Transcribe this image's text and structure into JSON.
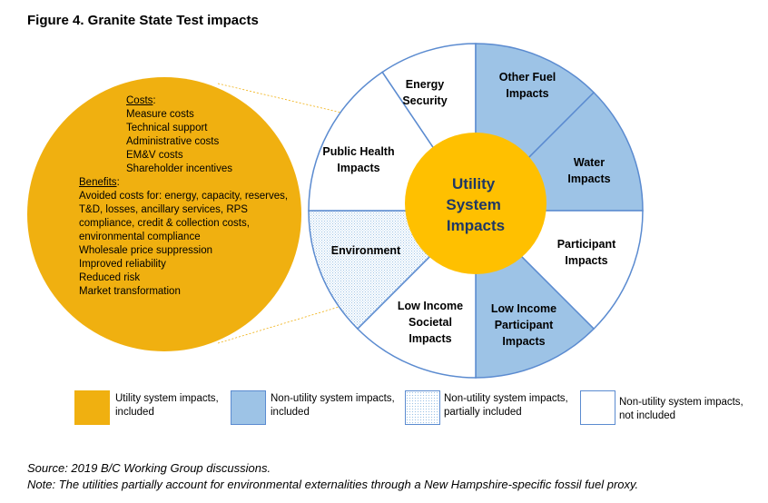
{
  "title": "Figure 4. Granite State Test impacts",
  "colors": {
    "utility": "#f0b010",
    "nonutility_included": "#9dc3e6",
    "border": "#5b8bd0",
    "center": "#ffc000"
  },
  "left_circle": {
    "costs_header": "Costs",
    "costs": [
      "Measure costs",
      "Technical support",
      "Administrative costs",
      "EM&V costs",
      "Shareholder incentives"
    ],
    "benefits_header": "Benefits",
    "benefits": [
      "Avoided costs for: energy, capacity, reserves,",
      "T&D, losses, ancillary services, RPS",
      "compliance, credit & collection costs,",
      "environmental compliance",
      "Wholesale price suppression",
      "Improved reliability",
      "Reduced risk",
      "Market transformation"
    ]
  },
  "center": {
    "lines": [
      "Utility",
      "System",
      "Impacts"
    ]
  },
  "segments": [
    {
      "name": "energy-security",
      "lines": [
        "Energy",
        "Security"
      ],
      "status": "not_included"
    },
    {
      "name": "other-fuel-impacts",
      "lines": [
        "Other Fuel",
        "Impacts"
      ],
      "status": "included"
    },
    {
      "name": "water-impacts",
      "lines": [
        "Water",
        "Impacts"
      ],
      "status": "included"
    },
    {
      "name": "participant-impacts",
      "lines": [
        "Participant",
        "Impacts"
      ],
      "status": "not_included"
    },
    {
      "name": "low-income-participant-impacts",
      "lines": [
        "Low Income",
        "Participant",
        "Impacts"
      ],
      "status": "included"
    },
    {
      "name": "low-income-societal-impacts",
      "lines": [
        "Low Income",
        "Societal",
        "Impacts"
      ],
      "status": "not_included"
    },
    {
      "name": "environment",
      "lines": [
        "Environment"
      ],
      "status": "partial"
    },
    {
      "name": "public-health-impacts",
      "lines": [
        "Public Health",
        "Impacts"
      ],
      "status": "not_included"
    }
  ],
  "legend": [
    {
      "lines": [
        "Utility system impacts,",
        "included"
      ],
      "style": "utility"
    },
    {
      "lines": [
        "Non-utility system impacts,",
        "included"
      ],
      "style": "included"
    },
    {
      "lines": [
        "Non-utility system impacts,",
        "partially included"
      ],
      "style": "partial"
    },
    {
      "lines": [
        "Non-utility system impacts,",
        "not included"
      ],
      "style": "not_included"
    }
  ],
  "source": "Source: 2019 B/C Working Group discussions.",
  "note": "Note: The utilities partially account for environmental externalities through a New Hampshire-specific fossil fuel proxy."
}
